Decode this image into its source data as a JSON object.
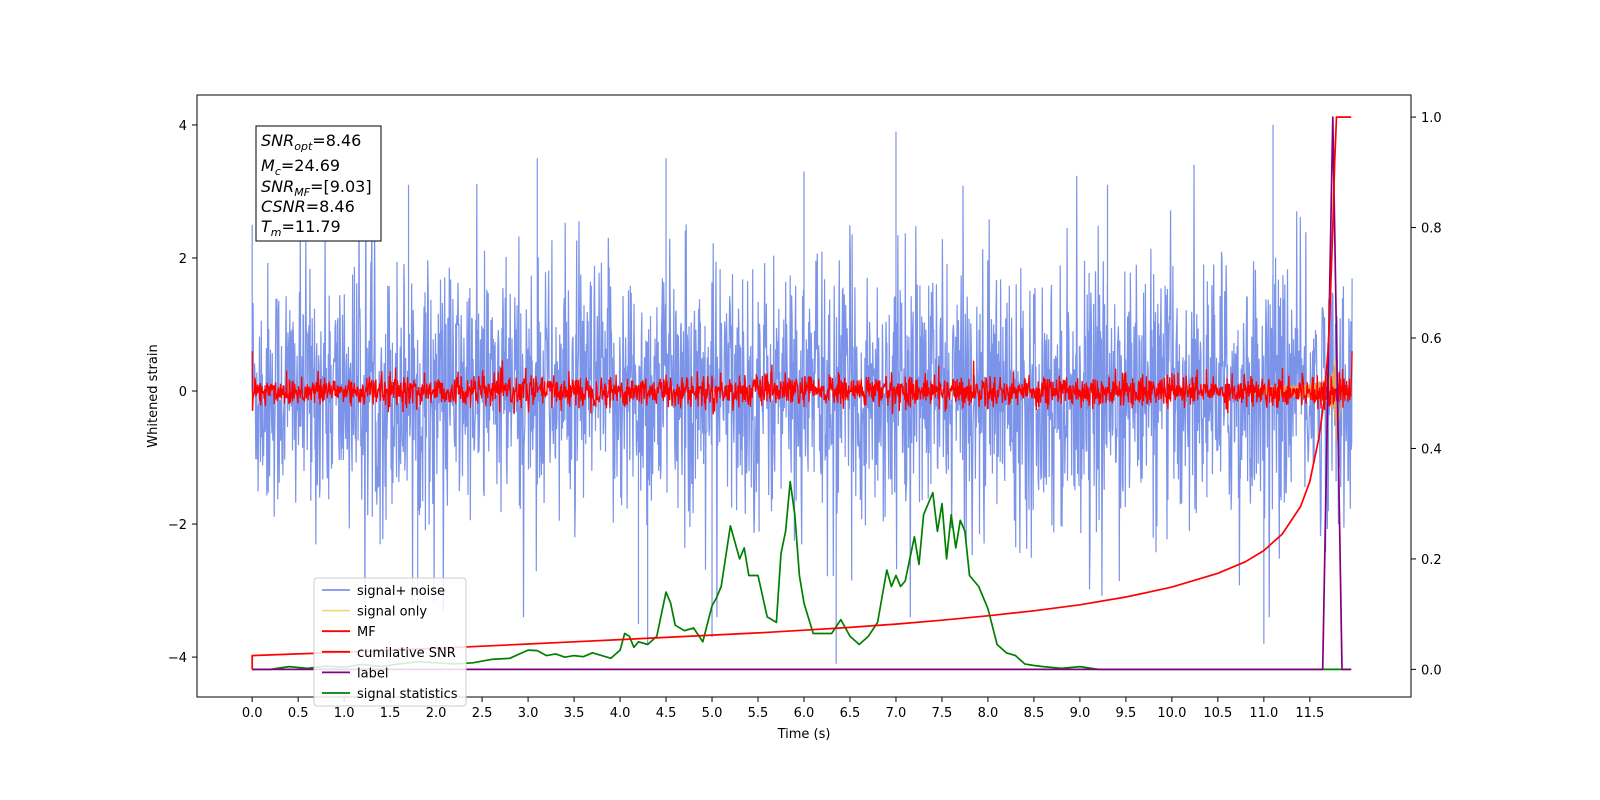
{
  "chart_data": {
    "type": "line",
    "xlabel": "Time (s)",
    "ylabel": "Whitened strain",
    "xlim": [
      -0.6,
      12.6
    ],
    "ylim_left": [
      -4.6,
      4.45
    ],
    "ylim_right": [
      -0.05,
      1.04
    ],
    "x_ticks": [
      "0.0",
      "0.5",
      "1.0",
      "1.5",
      "2.0",
      "2.5",
      "3.0",
      "3.5",
      "4.0",
      "4.5",
      "5.0",
      "5.5",
      "6.0",
      "6.5",
      "7.0",
      "7.5",
      "8.0",
      "8.5",
      "9.0",
      "9.5",
      "10.0",
      "10.5",
      "11.0",
      "11.5"
    ],
    "y_ticks_left": [
      "−4",
      "−2",
      "0",
      "2",
      "4"
    ],
    "y_ticks_right": [
      "0.0",
      "0.2",
      "0.4",
      "0.6",
      "0.8",
      "1.0"
    ],
    "grid": false,
    "legend_position": "lower-left",
    "textbox": {
      "line1": {
        "sym": "SNR",
        "sub": "opt",
        "value": "=8.46"
      },
      "line2": {
        "sym": "M",
        "sub": "c",
        "value": "=24.69"
      },
      "line3": {
        "sym": "SNR",
        "sub": "MF",
        "value": "=[9.03]"
      },
      "line4": {
        "sym": "CSNR",
        "sub": "",
        "value": "=8.46"
      },
      "line5": {
        "sym": "T",
        "sub": "m",
        "value": "=11.79"
      }
    },
    "series": [
      {
        "name": "signal+ noise",
        "color": "#7b93e8",
        "axis": "left",
        "note_std": 0.95,
        "spikes": [
          [
            0.0,
            2.5
          ],
          [
            1.7,
            3.1
          ],
          [
            3.1,
            3.5
          ],
          [
            4.5,
            3.5
          ],
          [
            6.0,
            3.3
          ],
          [
            7.0,
            3.9
          ],
          [
            9.3,
            3.1
          ],
          [
            11.1,
            4.0
          ],
          [
            4.2,
            -3.5
          ],
          [
            4.3,
            -3.8
          ],
          [
            6.35,
            -4.1
          ],
          [
            11.0,
            -3.8
          ],
          [
            5.0,
            -3.7
          ],
          [
            1.8,
            -3.4
          ]
        ]
      },
      {
        "name": "signal only",
        "color": "#f5d77e",
        "axis": "left"
      },
      {
        "name": "MF",
        "color": "#ff0000",
        "axis": "left",
        "note_std": 0.12
      },
      {
        "name": "cumilative SNR",
        "color": "#ff0000",
        "axis": "right",
        "x": [
          0.0,
          0.0,
          0.5,
          1.0,
          1.5,
          2.0,
          2.5,
          3.0,
          3.5,
          4.0,
          4.5,
          5.0,
          5.5,
          6.0,
          6.5,
          7.0,
          7.5,
          8.0,
          8.5,
          9.0,
          9.5,
          10.0,
          10.5,
          10.8,
          11.0,
          11.2,
          11.4,
          11.5,
          11.6,
          11.65,
          11.7,
          11.72,
          11.75,
          11.77,
          11.79,
          11.85,
          11.95
        ],
        "y": [
          0.0,
          0.025,
          0.028,
          0.031,
          0.035,
          0.038,
          0.042,
          0.046,
          0.05,
          0.054,
          0.058,
          0.062,
          0.066,
          0.071,
          0.076,
          0.082,
          0.089,
          0.097,
          0.106,
          0.117,
          0.131,
          0.149,
          0.174,
          0.195,
          0.215,
          0.245,
          0.295,
          0.34,
          0.42,
          0.48,
          0.58,
          0.66,
          0.8,
          0.92,
          1.0,
          1.0,
          1.0
        ]
      },
      {
        "name": "label",
        "color": "#800080",
        "axis": "right",
        "x": [
          0.0,
          11.64,
          11.75,
          11.85,
          11.95
        ],
        "y": [
          0.0,
          0.0,
          1.0,
          0.0,
          0.0
        ]
      },
      {
        "name": "signal statistics",
        "color": "#008000",
        "axis": "right",
        "x": [
          0.0,
          0.2,
          0.4,
          0.6,
          0.8,
          1.0,
          1.2,
          1.4,
          1.6,
          1.8,
          2.0,
          2.2,
          2.4,
          2.6,
          2.8,
          3.0,
          3.1,
          3.2,
          3.3,
          3.4,
          3.5,
          3.6,
          3.7,
          3.8,
          3.9,
          4.0,
          4.05,
          4.1,
          4.15,
          4.2,
          4.3,
          4.4,
          4.5,
          4.55,
          4.6,
          4.7,
          4.8,
          4.9,
          5.0,
          5.05,
          5.1,
          5.2,
          5.3,
          5.35,
          5.4,
          5.5,
          5.6,
          5.7,
          5.75,
          5.8,
          5.85,
          5.9,
          5.95,
          6.0,
          6.1,
          6.2,
          6.3,
          6.4,
          6.5,
          6.6,
          6.7,
          6.8,
          6.9,
          6.95,
          7.0,
          7.05,
          7.1,
          7.2,
          7.25,
          7.3,
          7.35,
          7.4,
          7.45,
          7.5,
          7.55,
          7.6,
          7.65,
          7.7,
          7.75,
          7.8,
          7.9,
          8.0,
          8.1,
          8.2,
          8.3,
          8.4,
          8.5,
          8.6,
          8.8,
          9.0,
          9.2,
          9.5,
          10.0,
          11.0,
          11.95
        ],
        "y": [
          0.0,
          0.0,
          0.005,
          0.002,
          0.006,
          0.004,
          0.009,
          0.005,
          0.01,
          0.014,
          0.012,
          0.01,
          0.012,
          0.018,
          0.02,
          0.035,
          0.034,
          0.025,
          0.028,
          0.022,
          0.025,
          0.023,
          0.03,
          0.025,
          0.02,
          0.035,
          0.065,
          0.06,
          0.04,
          0.05,
          0.045,
          0.06,
          0.14,
          0.12,
          0.08,
          0.07,
          0.075,
          0.05,
          0.115,
          0.13,
          0.15,
          0.26,
          0.2,
          0.22,
          0.17,
          0.17,
          0.095,
          0.085,
          0.21,
          0.25,
          0.34,
          0.28,
          0.17,
          0.12,
          0.065,
          0.065,
          0.065,
          0.09,
          0.06,
          0.045,
          0.06,
          0.085,
          0.18,
          0.15,
          0.17,
          0.15,
          0.16,
          0.24,
          0.19,
          0.28,
          0.3,
          0.32,
          0.25,
          0.3,
          0.2,
          0.28,
          0.22,
          0.27,
          0.25,
          0.17,
          0.15,
          0.11,
          0.045,
          0.03,
          0.025,
          0.01,
          0.007,
          0.005,
          0.002,
          0.005,
          0.0,
          0.0,
          0.0,
          0.0,
          0.0
        ]
      }
    ]
  }
}
